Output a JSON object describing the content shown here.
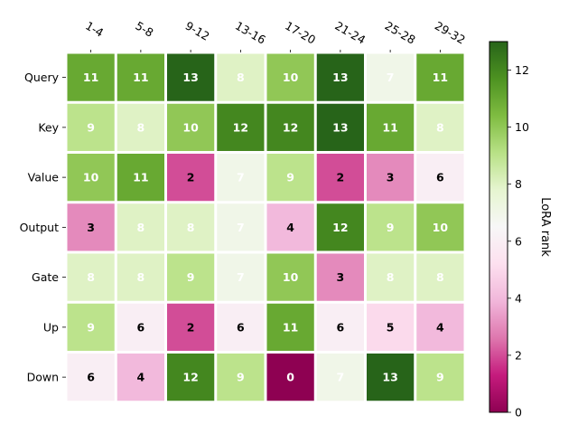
{
  "chart_data": {
    "type": "heatmap",
    "x_categories": [
      "1-4",
      "5-8",
      "9-12",
      "13-16",
      "17-20",
      "21-24",
      "25-28",
      "29-32"
    ],
    "y_categories": [
      "Query",
      "Key",
      "Value",
      "Output",
      "Gate",
      "Up",
      "Down"
    ],
    "values": [
      [
        11,
        11,
        13,
        8,
        10,
        13,
        7,
        11
      ],
      [
        9,
        8,
        10,
        12,
        12,
        13,
        11,
        8
      ],
      [
        10,
        11,
        2,
        7,
        9,
        2,
        3,
        6
      ],
      [
        3,
        8,
        8,
        7,
        4,
        12,
        9,
        10
      ],
      [
        8,
        8,
        9,
        7,
        10,
        3,
        8,
        8
      ],
      [
        9,
        6,
        2,
        6,
        11,
        6,
        5,
        4
      ],
      [
        6,
        4,
        12,
        9,
        0,
        7,
        13,
        9
      ]
    ],
    "colorbar": {
      "label": "LoRA rank",
      "vmin": 0,
      "vmax": 13,
      "ticks": [
        0,
        2,
        4,
        6,
        8,
        10,
        12
      ],
      "colormap": "PiYG"
    },
    "x_tick_position": "top",
    "grid": false
  }
}
